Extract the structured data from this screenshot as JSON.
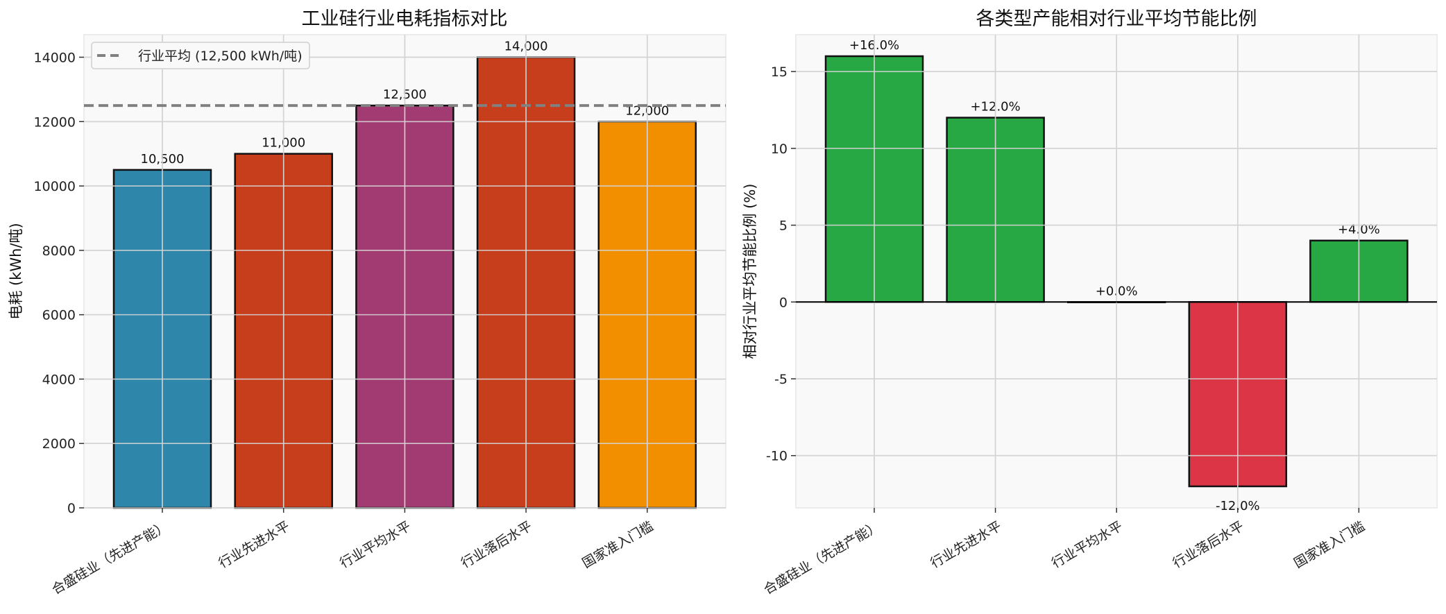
{
  "chart_data": [
    {
      "type": "bar",
      "title": "工业硅行业电耗指标对比",
      "xlabel": "",
      "ylabel": "电耗 (kWh/吨)",
      "categories": [
        "合盛硅业（先进产能）",
        "行业先进水平",
        "行业平均水平",
        "行业落后水平",
        "国家准入门槛"
      ],
      "values": [
        10500,
        11000,
        12500,
        14000,
        12000
      ],
      "value_labels": [
        "10,500",
        "11,000",
        "12,500",
        "14,000",
        "12,000"
      ],
      "colors": [
        "#2e86ab",
        "#c73e1d",
        "#a23b72",
        "#c73e1d",
        "#f18f01"
      ],
      "ylim": [
        0,
        14700
      ],
      "yticks": [
        0,
        2000,
        4000,
        6000,
        8000,
        10000,
        12000,
        14000
      ],
      "grid": true,
      "reference_line": {
        "value": 12500,
        "style": "dashed",
        "color": "#808080",
        "label": "行业平均 (12,500 kWh/吨)"
      },
      "legend": {
        "position": "upper left",
        "entries": [
          "行业平均 (12,500 kWh/吨)"
        ]
      }
    },
    {
      "type": "bar",
      "title": "各类型产能相对行业平均节能比例",
      "xlabel": "",
      "ylabel": "相对行业平均节能比例 (%)",
      "categories": [
        "合盛硅业（先进产能）",
        "行业先进水平",
        "行业平均水平",
        "行业落后水平",
        "国家准入门槛"
      ],
      "values": [
        16.0,
        12.0,
        0.0,
        -12.0,
        4.0
      ],
      "value_labels": [
        "+16.0%",
        "+12.0%",
        "+0.0%",
        "-12.0%",
        "+4.0%"
      ],
      "colors": [
        "#28a745",
        "#28a745",
        "#28a745",
        "#dc3545",
        "#28a745"
      ],
      "ylim": [
        -13.4,
        17.4
      ],
      "yticks": [
        -10,
        -5,
        0,
        5,
        10,
        15
      ],
      "grid": true,
      "zero_line": true
    }
  ]
}
